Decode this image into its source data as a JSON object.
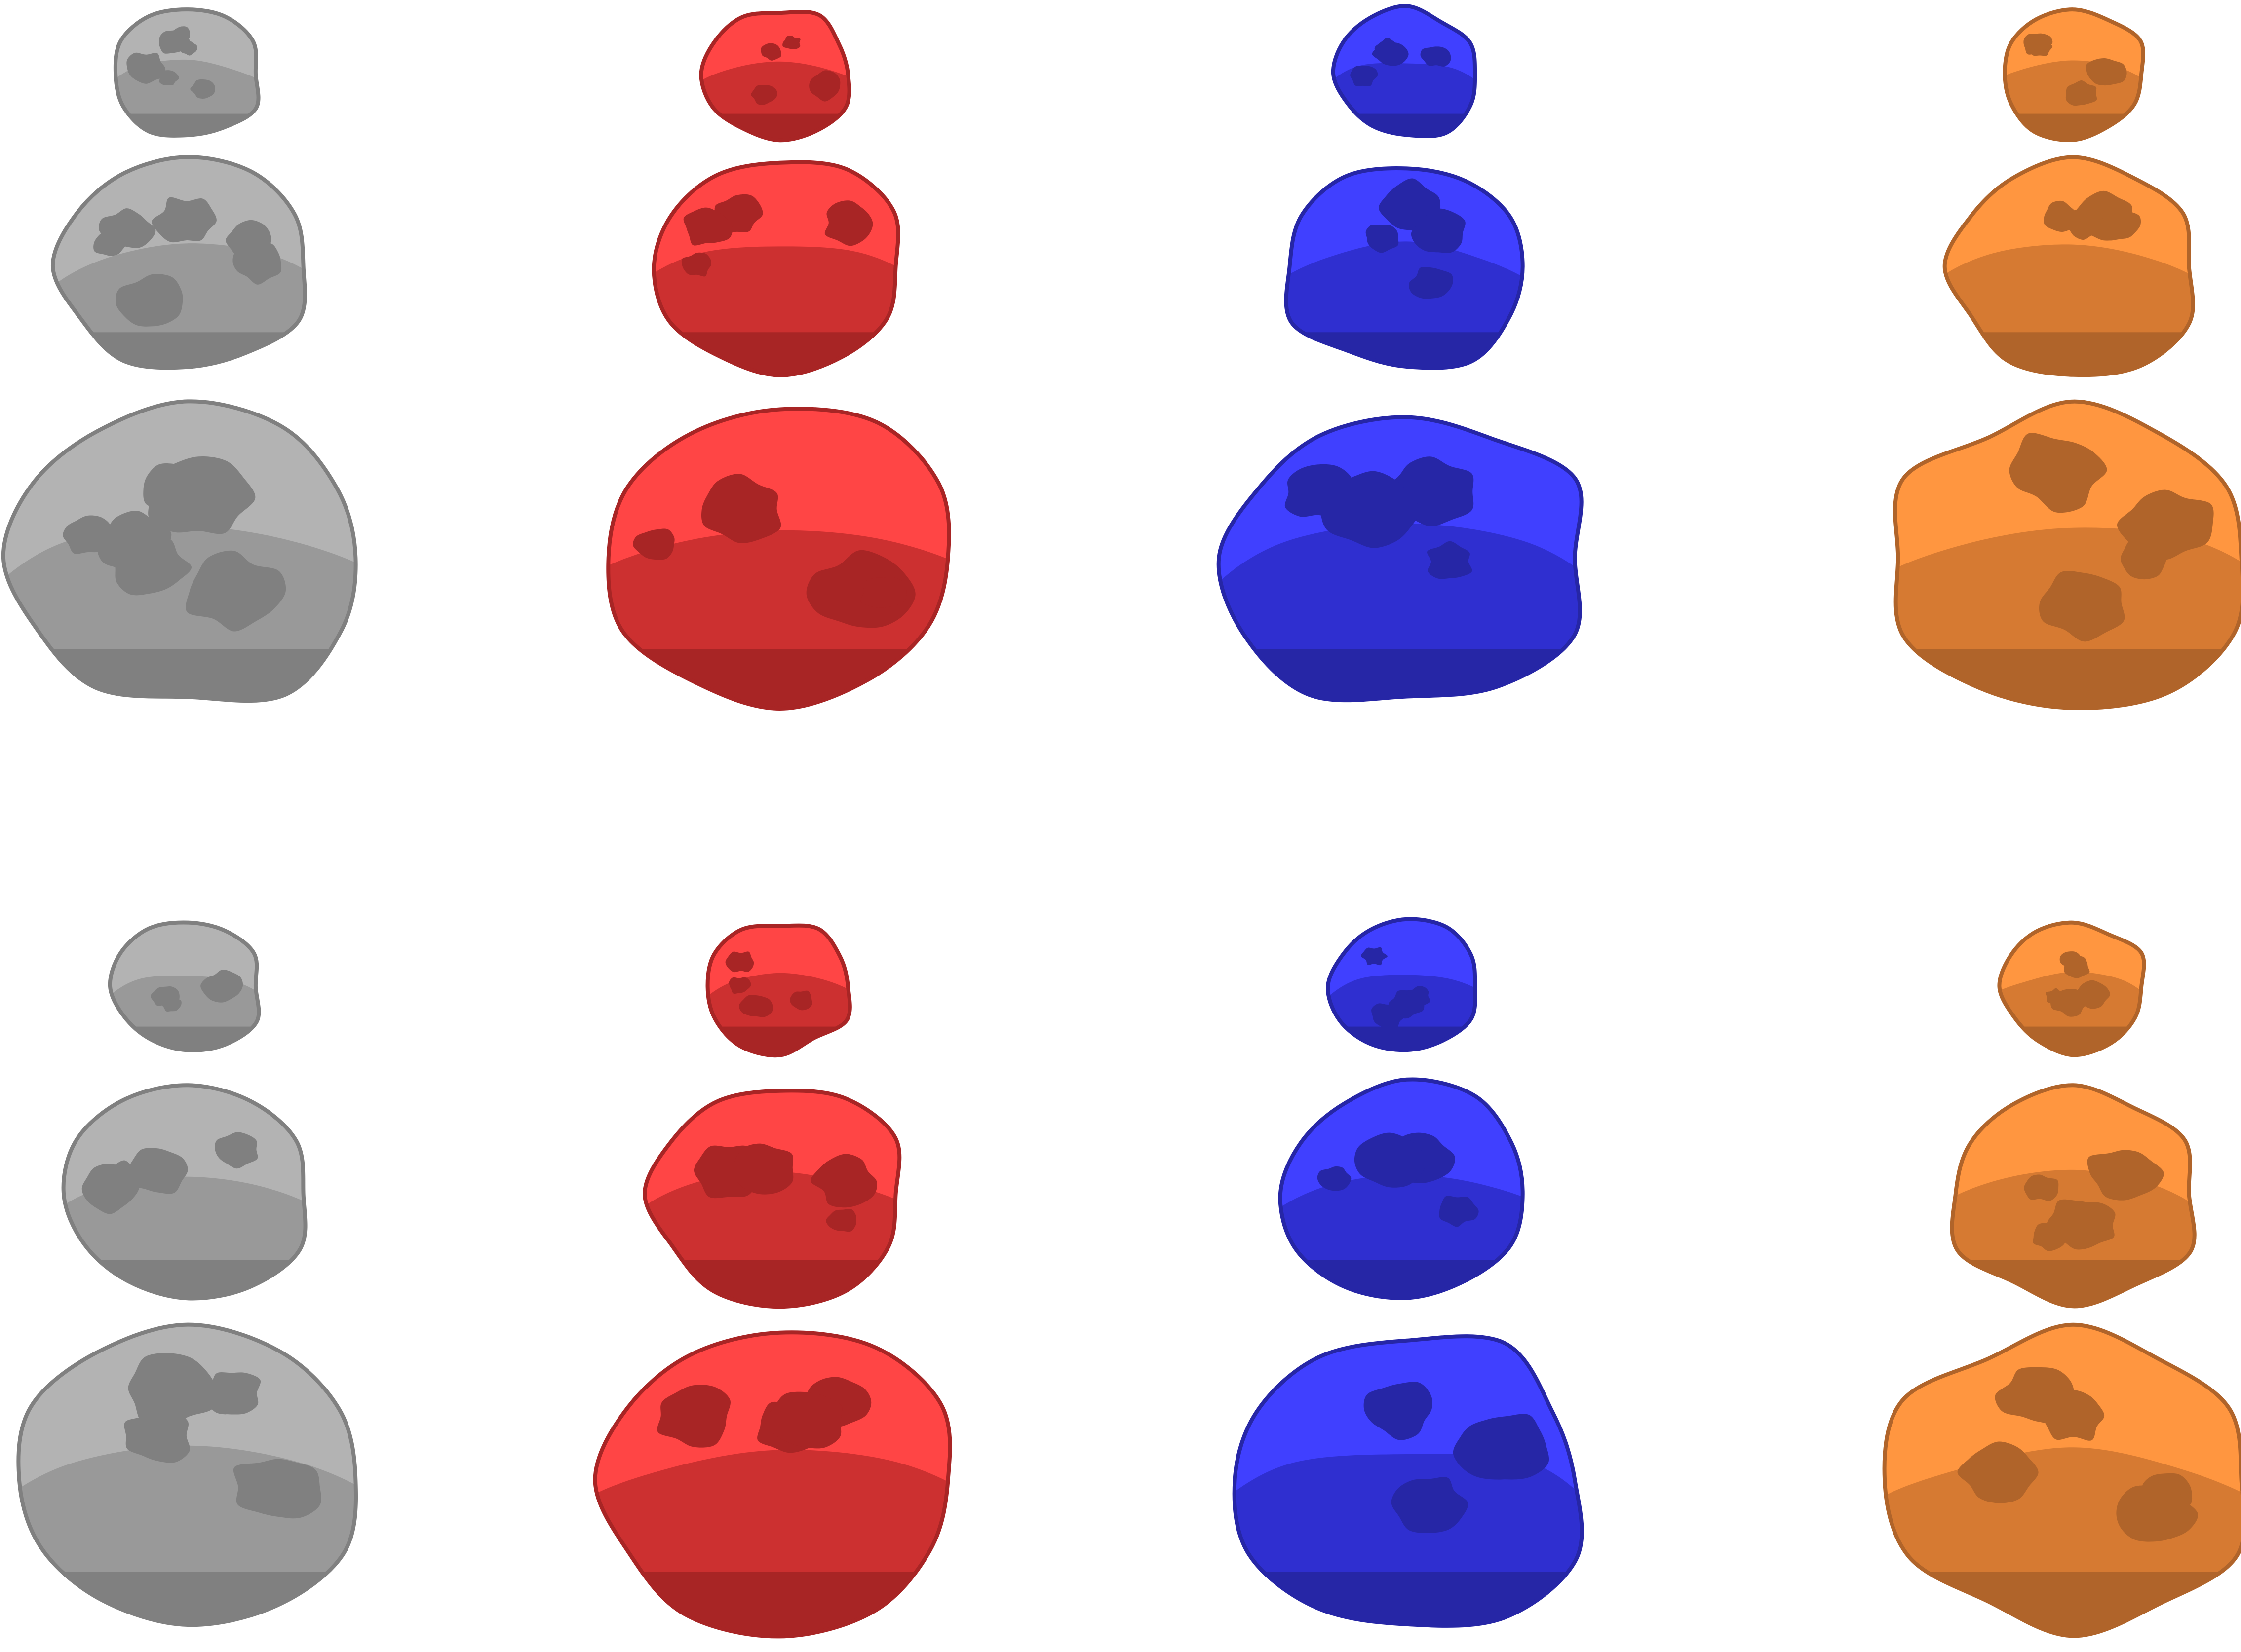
{
  "sprite_sheet": {
    "rows": 2,
    "columns": 4,
    "sizes": [
      "small",
      "medium",
      "large"
    ],
    "palettes": [
      {
        "name": "gray",
        "base": "#b3b3b3",
        "shade": "#999999",
        "crater": "#808080",
        "outline": "#808080"
      },
      {
        "name": "red",
        "base": "#ff4545",
        "shade": "#cc3030",
        "crater": "#a82525",
        "outline": "#a82525"
      },
      {
        "name": "blue",
        "base": "#4040ff",
        "shade": "#2f2fd0",
        "crater": "#2626a6",
        "outline": "#2626a6"
      },
      {
        "name": "orange",
        "base": "#ff9640",
        "shade": "#d67a32",
        "crater": "#b0642a",
        "outline": "#b0642a"
      }
    ]
  }
}
